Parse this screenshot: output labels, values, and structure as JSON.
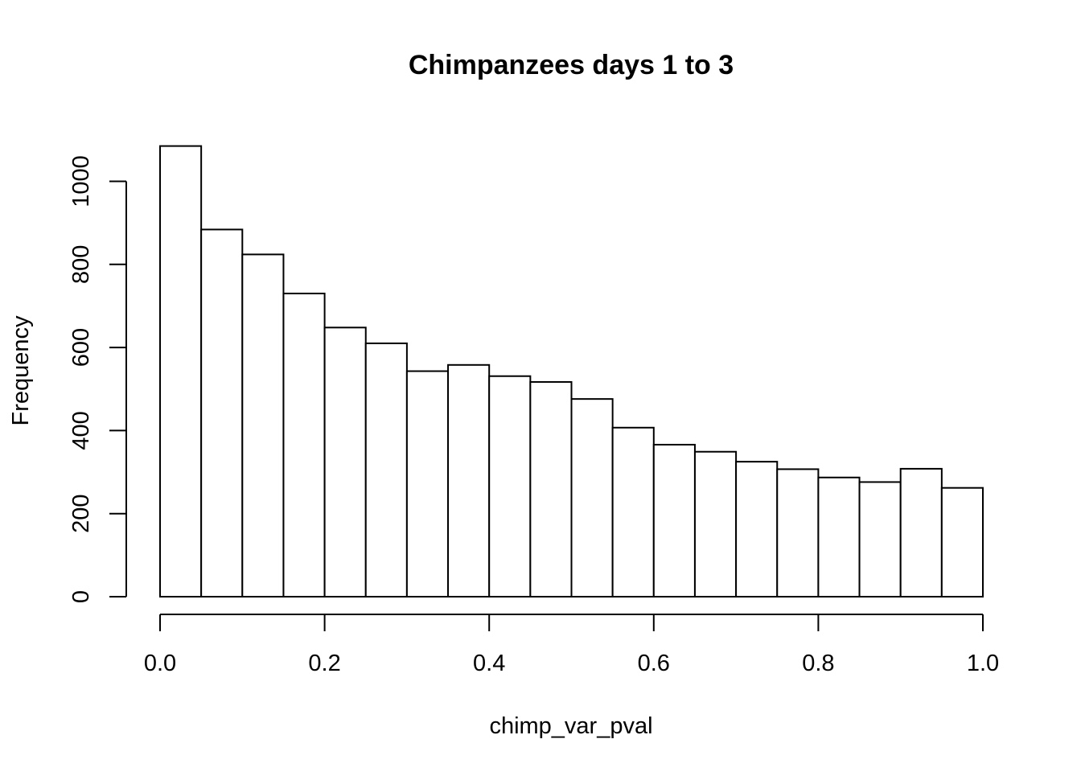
{
  "chart_data": {
    "type": "bar",
    "title": "Chimpanzees days 1 to 3",
    "xlabel": "chimp_var_pval",
    "ylabel": "Frequency",
    "histogram": true,
    "bin_edges": [
      0.0,
      0.05,
      0.1,
      0.15,
      0.2,
      0.25,
      0.3,
      0.35,
      0.4,
      0.45,
      0.5,
      0.55,
      0.6,
      0.65,
      0.7,
      0.75,
      0.8,
      0.85,
      0.9,
      0.95,
      1.0
    ],
    "values": [
      1085,
      884,
      824,
      730,
      648,
      610,
      543,
      558,
      531,
      517,
      476,
      407,
      366,
      349,
      325,
      307,
      287,
      276,
      308,
      262
    ],
    "xlim": [
      0.0,
      1.0
    ],
    "ylim": [
      0,
      1085
    ],
    "x_ticks": [
      0.0,
      0.2,
      0.4,
      0.6,
      0.8,
      1.0
    ],
    "x_tick_labels": [
      "0.0",
      "0.2",
      "0.4",
      "0.6",
      "0.8",
      "1.0"
    ],
    "y_ticks": [
      0,
      200,
      400,
      600,
      800,
      1000
    ],
    "y_tick_labels": [
      "0",
      "200",
      "400",
      "600",
      "800",
      "1000"
    ],
    "grid": false,
    "legend": "none",
    "bar_fill": "#ffffff",
    "bar_stroke": "#000000"
  }
}
